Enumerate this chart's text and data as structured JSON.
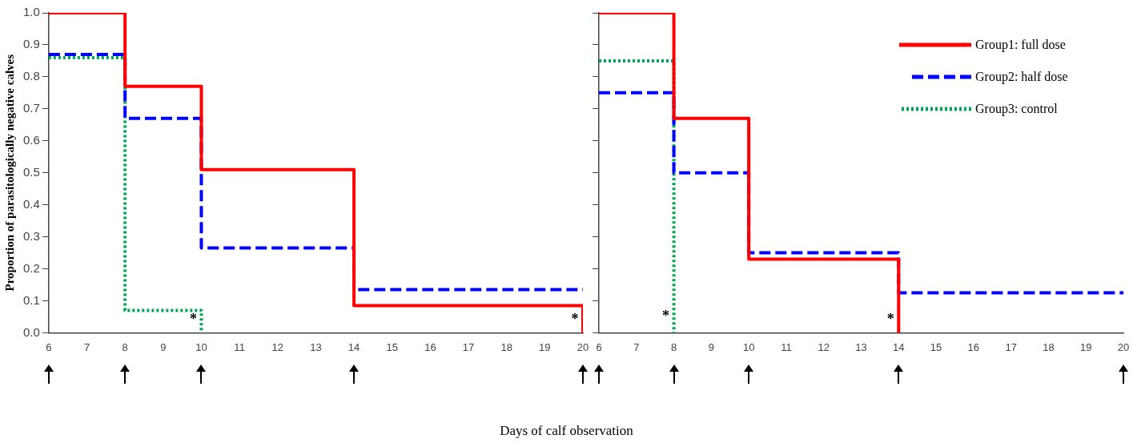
{
  "chart_data": [
    {
      "type": "step",
      "ylabel": "Proportion of parasitologically negative calves",
      "xlim": [
        6,
        20
      ],
      "xticks": [
        6,
        7,
        8,
        9,
        10,
        11,
        12,
        13,
        14,
        15,
        16,
        17,
        18,
        19,
        20
      ],
      "ylim": [
        0,
        1
      ],
      "yticks": [
        {
          "value": 0,
          "label": "0.0"
        },
        0.1,
        0.2,
        0.3,
        0.4,
        0.5,
        0.6,
        0.7,
        0.8,
        0.9,
        {
          "value": 1,
          "label": "1.0"
        }
      ],
      "grid": false,
      "legend": false,
      "series": [
        {
          "color": "#ff0000",
          "line_style": "solid",
          "x": [
            6,
            8,
            10,
            14,
            20
          ],
          "values": [
            1,
            0.77,
            0.51,
            0.085,
            0
          ]
        },
        {
          "color": "#0000ff",
          "line_style": "dashed",
          "x": [
            6,
            8,
            10,
            14,
            20
          ],
          "values": [
            0.87,
            0.67,
            0.265,
            0.135,
            0.135
          ]
        },
        {
          "color": "#00a651",
          "line_style": "dotted",
          "x": [
            6,
            8,
            10
          ],
          "values": [
            0.86,
            0.07,
            0
          ]
        }
      ],
      "annotations": [
        {
          "text": "*",
          "x": 10,
          "y": 0.04
        },
        {
          "text": "*",
          "x": 20,
          "y": 0.04
        }
      ]
    },
    {
      "type": "step",
      "xlabel": "Days of calf observation",
      "xlim": [
        6,
        20
      ],
      "xticks": [
        6,
        7,
        8,
        9,
        10,
        11,
        12,
        13,
        14,
        15,
        16,
        17,
        18,
        19,
        20
      ],
      "ylim": [
        0,
        1
      ],
      "yticks": [
        0,
        0.1,
        0.2,
        0.3,
        0.4,
        0.5,
        0.6,
        0.7,
        0.8,
        0.9,
        1
      ],
      "tick_labels": "x",
      "grid": false,
      "legend": "top right",
      "series": [
        {
          "name": "Group1: full dose",
          "color": "#ff0000",
          "line_style": "solid",
          "x": [
            6,
            8,
            10,
            14
          ],
          "values": [
            1,
            0.67,
            0.23,
            0
          ]
        },
        {
          "name": "Group2: half dose",
          "color": "#0000ff",
          "line_style": "dashed",
          "x": [
            6,
            8,
            10,
            14,
            20
          ],
          "values": [
            0.75,
            0.5,
            0.25,
            0.125,
            0.125
          ]
        },
        {
          "name": "Group3: control",
          "color": "#00a651",
          "line_style": "dotted",
          "x": [
            6,
            8
          ],
          "values": [
            0.85,
            0
          ]
        }
      ],
      "annotations": [
        {
          "text": "*",
          "x": 8,
          "y": 0.05
        },
        {
          "text": "*",
          "x": 14,
          "y": 0.04
        }
      ]
    }
  ]
}
